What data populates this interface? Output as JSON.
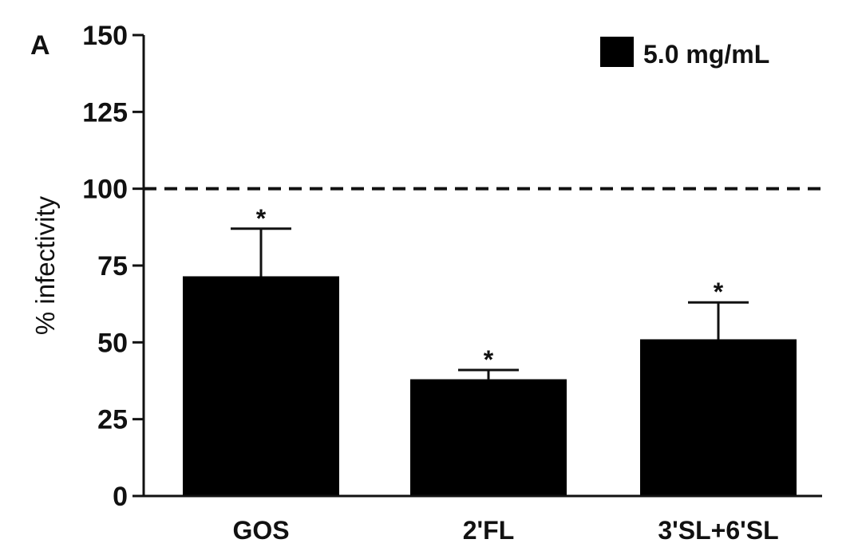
{
  "chart_data": {
    "type": "bar",
    "panel_label": "A",
    "title": "",
    "xlabel": "",
    "ylabel": "% infectivity",
    "ylim": [
      0,
      150
    ],
    "yticks": [
      0,
      25,
      50,
      75,
      100,
      125,
      150
    ],
    "categories": [
      "GOS",
      "2'FL",
      "3'SL+6'SL"
    ],
    "series": [
      {
        "name": "5.0 mg/mL",
        "color": "#000000",
        "values": [
          71.5,
          38,
          51
        ],
        "error_upper": [
          87,
          41,
          63
        ],
        "significance": [
          "*",
          "*",
          "*"
        ]
      }
    ],
    "reference_line": {
      "value": 100,
      "style": "dashed"
    },
    "legend": {
      "position": "top-right"
    },
    "grid": false
  }
}
